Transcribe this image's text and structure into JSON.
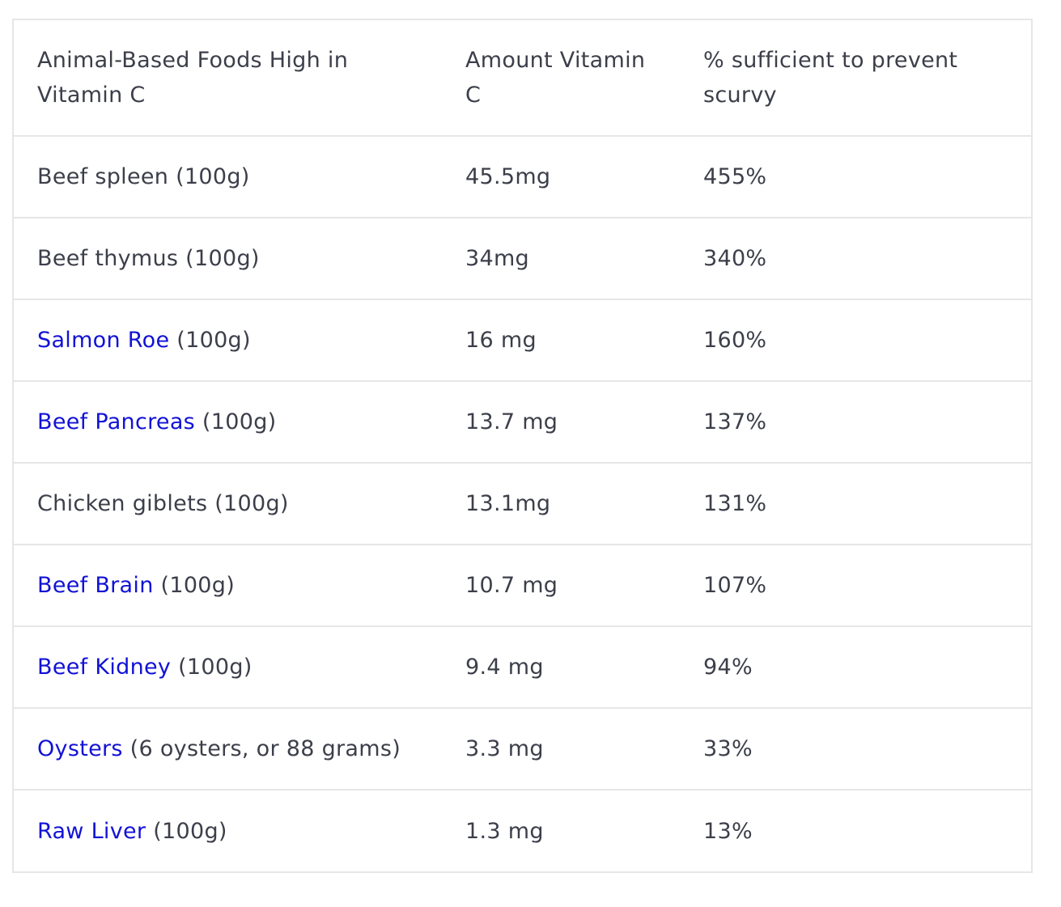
{
  "table": {
    "headers": [
      "Animal-Based Foods High in Vitamin C",
      "Amount Vitamin C",
      "% sufficient to prevent scurvy"
    ],
    "rows": [
      {
        "food": "Beef spleen",
        "is_link": false,
        "portion": " (100g)",
        "amount": "45.5mg",
        "percent": "455%"
      },
      {
        "food": "Beef thymus",
        "is_link": false,
        "portion": " (100g)",
        "amount": "34mg",
        "percent": "340%"
      },
      {
        "food": "Salmon Roe",
        "is_link": true,
        "portion": " (100g)",
        "amount": "16 mg",
        "percent": "160%"
      },
      {
        "food": "Beef Pancreas",
        "is_link": true,
        "portion": " (100g)",
        "amount": "13.7 mg",
        "percent": "137%"
      },
      {
        "food": "Chicken giblets",
        "is_link": false,
        "portion": " (100g)",
        "amount": "13.1mg",
        "percent": "131%"
      },
      {
        "food": "Beef Brain",
        "is_link": true,
        "portion": " (100g)",
        "amount": "10.7 mg",
        "percent": "107%"
      },
      {
        "food": "Beef Kidney",
        "is_link": true,
        "portion": " (100g)",
        "amount": "9.4 mg",
        "percent": "94%"
      },
      {
        "food": "Oysters",
        "is_link": true,
        "portion": " (6 oysters, or 88 grams)",
        "amount": "3.3 mg",
        "percent": "33%"
      },
      {
        "food": "Raw Liver",
        "is_link": true,
        "portion": " (100g)",
        "amount": "1.3 mg",
        "percent": "13%"
      }
    ]
  },
  "colors": {
    "text": "#3c3f4a",
    "link": "#1212d6",
    "border": "#e6e6e6"
  }
}
